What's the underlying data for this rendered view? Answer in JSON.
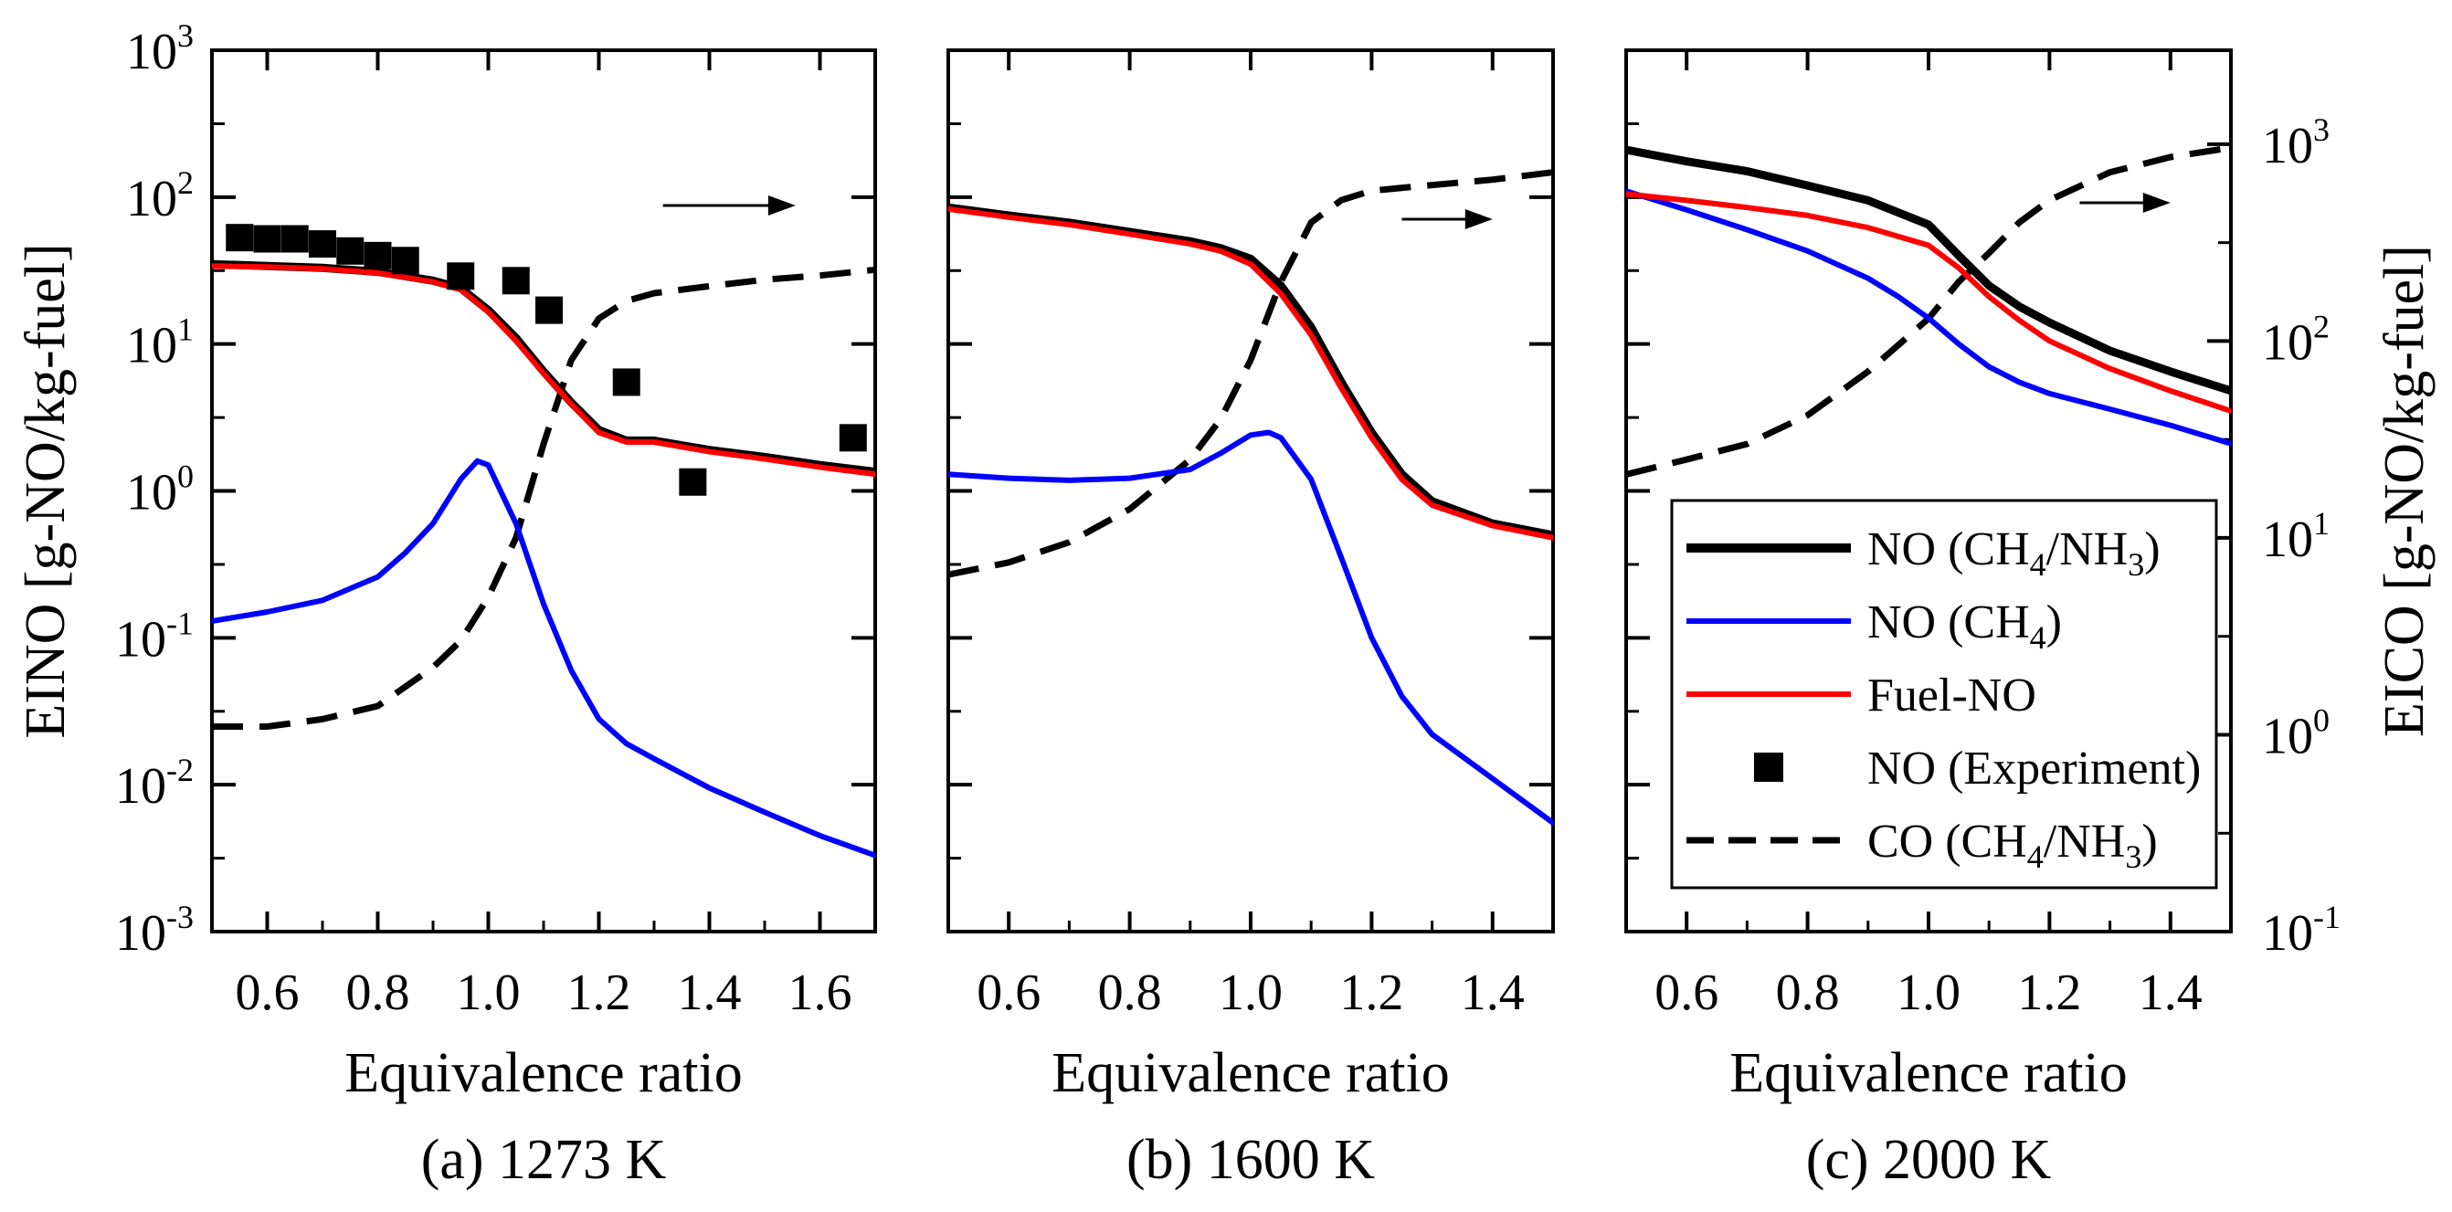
{
  "figure": {
    "left_axis_label": "EINO [g-NO/kg-fuel]",
    "right_axis_label": "EICO [g-NO/kg-fuel]",
    "shared_xlabel": "Equivalence ratio"
  },
  "legend": {
    "items": [
      {
        "key": "no_ch4nh3",
        "label": "NO (CH4/NH3)",
        "parts": [
          [
            "NO (CH",
            ""
          ],
          [
            "4",
            "sub"
          ],
          [
            "/NH",
            ""
          ],
          [
            "3",
            "sub"
          ],
          [
            ")",
            ""
          ]
        ],
        "color": "#000000",
        "style": "thick"
      },
      {
        "key": "no_ch4",
        "label": "NO (CH4)",
        "parts": [
          [
            "NO (CH",
            ""
          ],
          [
            "4",
            "sub"
          ],
          [
            ")",
            ""
          ]
        ],
        "color": "#0000ff",
        "style": "solid"
      },
      {
        "key": "fuel_no",
        "label": "Fuel-NO",
        "parts": [
          [
            "Fuel-NO",
            ""
          ]
        ],
        "color": "#ff0000",
        "style": "solid"
      },
      {
        "key": "exp",
        "label": "NO (Experiment)",
        "parts": [
          [
            "NO (Experiment)",
            ""
          ]
        ],
        "color": "#000000",
        "style": "square"
      },
      {
        "key": "co",
        "label": "CO (CH4/NH3)",
        "parts": [
          [
            "CO (CH",
            ""
          ],
          [
            "4",
            "sub"
          ],
          [
            "/NH",
            ""
          ],
          [
            "3",
            "sub"
          ],
          [
            ")",
            ""
          ]
        ],
        "color": "#000000",
        "style": "dashed"
      }
    ]
  },
  "chart_data": [
    {
      "type": "line",
      "caption": "(a) 1273 K",
      "xlabel": "Equivalence ratio",
      "ylabel": "EINO [g-NO/kg-fuel]",
      "yscale": "log",
      "xlim": [
        0.5,
        1.7
      ],
      "ylim": [
        0.001,
        1000
      ],
      "x_ticks": [
        0.6,
        0.8,
        1.0,
        1.2,
        1.4,
        1.6
      ],
      "x_tick_labels": [
        "0.6",
        "0.8",
        "1.0",
        "1.2",
        "1.4",
        "1.6"
      ],
      "y_tick_exponents": [
        -3,
        -2,
        -1,
        0,
        1,
        2,
        3
      ],
      "y_tick_labels": [
        "10",
        "10",
        "10",
        "10",
        "10",
        "10",
        "10"
      ],
      "y_tick_sup": [
        "-3",
        "-2",
        "-1",
        "0",
        "1",
        "2",
        "3"
      ],
      "series": [
        {
          "name": "NO (CH4/NH3)",
          "x": [
            0.5,
            0.6,
            0.7,
            0.8,
            0.9,
            0.95,
            1.0,
            1.05,
            1.1,
            1.15,
            1.2,
            1.25,
            1.3,
            1.4,
            1.5,
            1.6,
            1.7
          ],
          "y": [
            35,
            34,
            33,
            31,
            27,
            24,
            17,
            11,
            6.5,
            4.0,
            2.6,
            2.2,
            2.2,
            1.9,
            1.7,
            1.5,
            1.35
          ]
        },
        {
          "name": "Fuel-NO",
          "x": [
            0.5,
            0.6,
            0.7,
            0.8,
            0.9,
            0.95,
            1.0,
            1.05,
            1.1,
            1.15,
            1.2,
            1.25,
            1.3,
            1.4,
            1.5,
            1.6,
            1.7
          ],
          "y": [
            34,
            33.5,
            32.5,
            30.5,
            26.5,
            23.5,
            16.5,
            10.5,
            6.3,
            3.9,
            2.5,
            2.15,
            2.15,
            1.85,
            1.65,
            1.45,
            1.3
          ]
        },
        {
          "name": "NO (CH4)",
          "x": [
            0.5,
            0.6,
            0.7,
            0.8,
            0.85,
            0.9,
            0.95,
            0.98,
            1.0,
            1.05,
            1.1,
            1.15,
            1.2,
            1.25,
            1.3,
            1.4,
            1.5,
            1.6,
            1.7
          ],
          "y": [
            0.13,
            0.15,
            0.18,
            0.26,
            0.38,
            0.6,
            1.2,
            1.6,
            1.5,
            0.6,
            0.17,
            0.06,
            0.028,
            0.019,
            0.015,
            0.0095,
            0.0065,
            0.0045,
            0.0033
          ]
        },
        {
          "name": "CO (CH4/NH3)",
          "axis": "right",
          "x": [
            0.5,
            0.6,
            0.7,
            0.8,
            0.9,
            0.95,
            1.0,
            1.05,
            1.1,
            1.15,
            1.2,
            1.25,
            1.3,
            1.4,
            1.5,
            1.6,
            1.7
          ],
          "y": [
            1.1,
            1.1,
            1.2,
            1.4,
            2.2,
            3.0,
            5.0,
            10,
            30,
            80,
            130,
            160,
            175,
            190,
            205,
            215,
            230
          ]
        },
        {
          "name": "NO (Experiment)",
          "type": "scatter",
          "x": [
            0.55,
            0.6,
            0.65,
            0.7,
            0.75,
            0.8,
            0.85,
            0.95,
            1.05,
            1.11,
            1.25,
            1.37,
            1.66
          ],
          "y": [
            53,
            52,
            52,
            48,
            43,
            40,
            37,
            29,
            27,
            17,
            5.5,
            1.15,
            2.3
          ]
        }
      ],
      "annotation": "arrow pointing right (CO curve read on right axis)"
    },
    {
      "type": "line",
      "caption": "(b) 1600 K",
      "xlabel": "Equivalence ratio",
      "yscale": "log",
      "xlim": [
        0.5,
        1.5
      ],
      "ylim": [
        0.001,
        1000
      ],
      "x_ticks": [
        0.6,
        0.8,
        1.0,
        1.2,
        1.4
      ],
      "x_tick_labels": [
        "0.6",
        "0.8",
        "1.0",
        "1.2",
        "1.4"
      ],
      "series": [
        {
          "name": "NO (CH4/NH3)",
          "x": [
            0.5,
            0.6,
            0.7,
            0.8,
            0.9,
            0.95,
            1.0,
            1.05,
            1.1,
            1.15,
            1.2,
            1.25,
            1.3,
            1.4,
            1.5
          ],
          "y": [
            85,
            75,
            67,
            58,
            50,
            45,
            38,
            25,
            13,
            5.5,
            2.5,
            1.3,
            0.85,
            0.6,
            0.5
          ]
        },
        {
          "name": "Fuel-NO",
          "x": [
            0.5,
            0.6,
            0.7,
            0.8,
            0.9,
            0.95,
            1.0,
            1.05,
            1.1,
            1.15,
            1.2,
            1.25,
            1.3,
            1.4,
            1.5
          ],
          "y": [
            83,
            73,
            65,
            56,
            48,
            43,
            35,
            22,
            11.5,
            5.0,
            2.3,
            1.2,
            0.8,
            0.58,
            0.48
          ]
        },
        {
          "name": "NO (CH4)",
          "x": [
            0.5,
            0.6,
            0.7,
            0.8,
            0.9,
            0.95,
            1.0,
            1.03,
            1.05,
            1.1,
            1.15,
            1.2,
            1.25,
            1.3,
            1.4,
            1.5
          ],
          "y": [
            1.3,
            1.22,
            1.18,
            1.22,
            1.4,
            1.8,
            2.4,
            2.5,
            2.3,
            1.2,
            0.35,
            0.1,
            0.04,
            0.022,
            0.011,
            0.0055
          ]
        },
        {
          "name": "CO (CH4/NH3)",
          "axis": "right",
          "x": [
            0.5,
            0.6,
            0.7,
            0.8,
            0.9,
            0.95,
            1.0,
            1.05,
            1.1,
            1.15,
            1.2,
            1.3,
            1.4,
            1.5
          ],
          "y": [
            6.5,
            7.5,
            9.5,
            14,
            25,
            40,
            80,
            200,
            400,
            520,
            580,
            620,
            660,
            720
          ]
        }
      ],
      "annotation": "arrow pointing right (CO curve read on right axis)"
    },
    {
      "type": "line",
      "caption": "(c) 2000 K",
      "xlabel": "Equivalence ratio",
      "ylabel_right": "EICO [g-NO/kg-fuel]",
      "yscale": "log",
      "xlim": [
        0.5,
        1.5
      ],
      "ylim": [
        0.001,
        1000
      ],
      "y2lim": [
        0.1,
        3000
      ],
      "x_ticks": [
        0.6,
        0.8,
        1.0,
        1.2,
        1.4
      ],
      "x_tick_labels": [
        "0.6",
        "0.8",
        "1.0",
        "1.2",
        "1.4"
      ],
      "y2_tick_exponents": [
        -1,
        0,
        1,
        2,
        3
      ],
      "y2_tick_labels": [
        "10",
        "10",
        "10",
        "10",
        "10"
      ],
      "y2_tick_sup": [
        "-1",
        "0",
        "1",
        "2",
        "3"
      ],
      "series": [
        {
          "name": "NO (CH4/NH3)",
          "x": [
            0.5,
            0.6,
            0.7,
            0.8,
            0.9,
            1.0,
            1.05,
            1.1,
            1.15,
            1.2,
            1.3,
            1.4,
            1.5
          ],
          "y": [
            210,
            175,
            150,
            120,
            95,
            65,
            40,
            25,
            18,
            14,
            9,
            6.5,
            4.8
          ]
        },
        {
          "name": "Fuel-NO",
          "x": [
            0.5,
            0.6,
            0.7,
            0.8,
            0.9,
            1.0,
            1.05,
            1.1,
            1.15,
            1.2,
            1.3,
            1.4,
            1.5
          ],
          "y": [
            105,
            95,
            85,
            75,
            62,
            47,
            33,
            21,
            14.5,
            10.5,
            6.8,
            4.8,
            3.5
          ]
        },
        {
          "name": "NO (CH4)",
          "x": [
            0.5,
            0.6,
            0.7,
            0.8,
            0.9,
            0.95,
            1.0,
            1.05,
            1.1,
            1.15,
            1.2,
            1.3,
            1.4,
            1.5
          ],
          "y": [
            110,
            82,
            60,
            43,
            28,
            21,
            15,
            10,
            7.0,
            5.5,
            4.6,
            3.6,
            2.8,
            2.1
          ]
        },
        {
          "name": "CO (CH4/NH3)",
          "axis": "right",
          "x": [
            0.5,
            0.6,
            0.7,
            0.8,
            0.9,
            1.0,
            1.05,
            1.1,
            1.15,
            1.2,
            1.3,
            1.4,
            1.5
          ],
          "y": [
            21,
            25,
            30,
            42,
            70,
            130,
            200,
            280,
            400,
            520,
            720,
            860,
            960
          ]
        }
      ],
      "annotation": "arrow pointing right (CO curve read on right axis)"
    }
  ]
}
